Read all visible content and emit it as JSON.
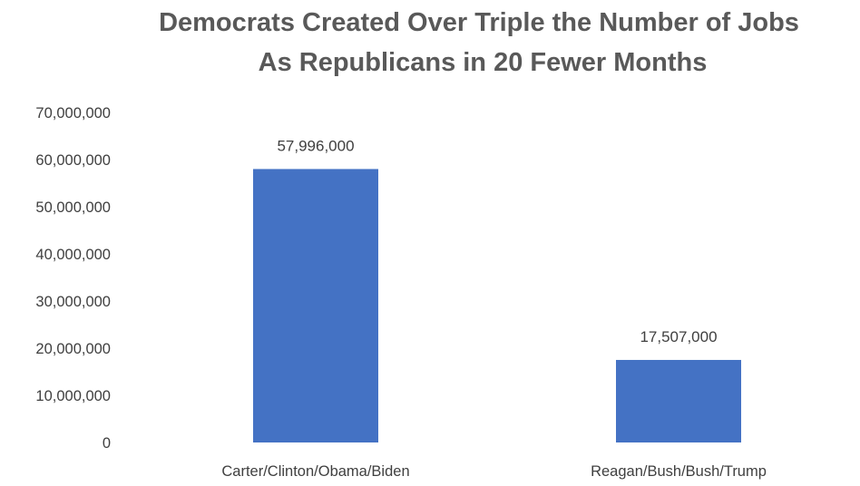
{
  "chart_data": {
    "type": "bar",
    "title_lines": [
      "Democrats Created Over Triple the Number of Jobs",
      "As Republicans in 20 Fewer Months"
    ],
    "categories": [
      "Carter/Clinton/Obama/Biden",
      "Reagan/Bush/Bush/Trump"
    ],
    "values": [
      57996000,
      17507000
    ],
    "data_labels": [
      "57,996,000",
      "17,507,000"
    ],
    "ylim": [
      0,
      70000000
    ],
    "y_ticks": [
      0,
      10000000,
      20000000,
      30000000,
      40000000,
      50000000,
      60000000,
      70000000
    ],
    "y_tick_labels": [
      "0",
      "10,000,000",
      "20,000,000",
      "30,000,000",
      "40,000,000",
      "50,000,000",
      "60,000,000",
      "70,000,000"
    ],
    "grid": false,
    "legend": "none",
    "bar_color": "#4472C4",
    "xlabel": "",
    "ylabel": ""
  }
}
